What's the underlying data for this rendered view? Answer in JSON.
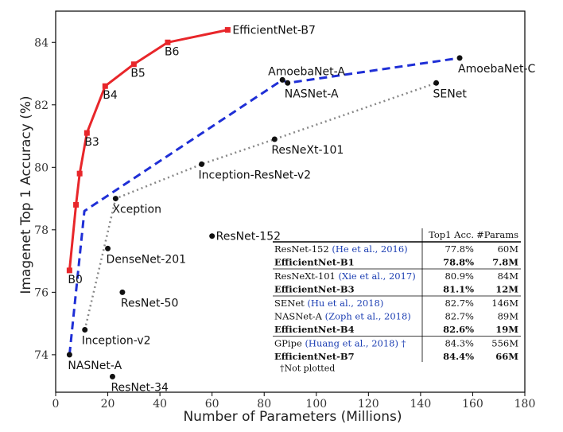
{
  "chart_data": {
    "type": "line",
    "xlabel": "Number of Parameters (Millions)",
    "ylabel": "Imagenet Top 1 Accuracy (%)",
    "xlim": [
      0,
      180
    ],
    "ylim": [
      72.8,
      85
    ],
    "xticks": [
      0,
      20,
      40,
      60,
      80,
      100,
      120,
      140,
      160,
      180
    ],
    "yticks": [
      74,
      76,
      78,
      80,
      82,
      84
    ],
    "grid": false,
    "series": [
      {
        "style": "solid-red-squares",
        "color": "#e8262a",
        "points": [
          {
            "x": 5.3,
            "y": 76.7,
            "label": "B0"
          },
          {
            "x": 7.8,
            "y": 78.8,
            "label": ""
          },
          {
            "x": 9.2,
            "y": 79.8,
            "label": ""
          },
          {
            "x": 12,
            "y": 81.1,
            "label": "B3"
          },
          {
            "x": 19,
            "y": 82.6,
            "label": "B4"
          },
          {
            "x": 30,
            "y": 83.3,
            "label": "B5"
          },
          {
            "x": 43,
            "y": 84.0,
            "label": "B6"
          },
          {
            "x": 66,
            "y": 84.4,
            "label": "EfficientNet-B7"
          }
        ]
      },
      {
        "style": "dashed-blue",
        "color": "#1f2fd6",
        "points": [
          {
            "x": 5.3,
            "y": 74.0,
            "label": "NASNet-A"
          },
          {
            "x": 11,
            "y": 78.6,
            "label": ""
          },
          {
            "x": 87,
            "y": 82.8,
            "label": "AmoebaNet-A"
          },
          {
            "x": 89,
            "y": 82.7,
            "label": "NASNet-A"
          },
          {
            "x": 155,
            "y": 83.5,
            "label": "AmoebaNet-C"
          }
        ]
      },
      {
        "style": "dotted-gray",
        "color": "#888888",
        "points": [
          {
            "x": 11.2,
            "y": 74.8,
            "label": "Inception-v2"
          },
          {
            "x": 23,
            "y": 79.0,
            "label": "Xception"
          },
          {
            "x": 56,
            "y": 80.1,
            "label": "Inception-ResNet-v2"
          },
          {
            "x": 84,
            "y": 80.9,
            "label": "ResNeXt-101"
          },
          {
            "x": 146,
            "y": 82.7,
            "label": "SENet"
          }
        ]
      }
    ],
    "scatter": [
      {
        "x": 20,
        "y": 77.4,
        "label": "DenseNet-201"
      },
      {
        "x": 25.6,
        "y": 76.0,
        "label": "ResNet-50"
      },
      {
        "x": 21.8,
        "y": 73.3,
        "label": "ResNet-34"
      },
      {
        "x": 60,
        "y": 77.8,
        "label": "ResNet-152"
      }
    ],
    "table": {
      "headers": [
        "",
        "Top1 Acc.",
        "#Params"
      ],
      "groups": [
        [
          {
            "name": "ResNet-152 ",
            "cite": "(He et al., 2016)",
            "acc": "77.8%",
            "params": "60M",
            "bold": false
          },
          {
            "name": "EfficientNet-B1",
            "cite": "",
            "acc": "78.8%",
            "params": "7.8M",
            "bold": true
          }
        ],
        [
          {
            "name": "ResNeXt-101 ",
            "cite": "(Xie et al., 2017)",
            "acc": "80.9%",
            "params": "84M",
            "bold": false
          },
          {
            "name": "EfficientNet-B3",
            "cite": "",
            "acc": "81.1%",
            "params": "12M",
            "bold": true
          }
        ],
        [
          {
            "name": "SENet ",
            "cite": "(Hu et al., 2018)",
            "acc": "82.7%",
            "params": "146M",
            "bold": false
          },
          {
            "name": "NASNet-A ",
            "cite": "(Zoph et al., 2018)",
            "acc": "82.7%",
            "params": "89M",
            "bold": false
          },
          {
            "name": "EfficientNet-B4",
            "cite": "",
            "acc": "82.6%",
            "params": "19M",
            "bold": true
          }
        ],
        [
          {
            "name": "GPipe ",
            "cite": "(Huang et al., 2018) †",
            "acc": "84.3%",
            "params": "556M",
            "bold": false
          },
          {
            "name": "EfficientNet-B7",
            "cite": "",
            "acc": "84.4%",
            "params": "66M",
            "bold": true
          }
        ]
      ],
      "footnote": "†Not plotted"
    }
  }
}
